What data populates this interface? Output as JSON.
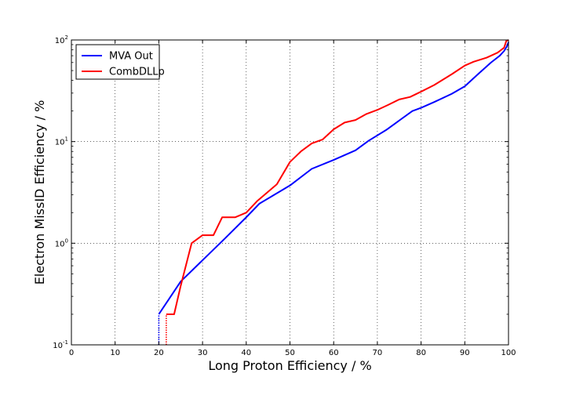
{
  "chart_data": {
    "type": "line",
    "title": "",
    "xlabel": "Long Proton Efficiency / %",
    "ylabel": "Electron MissID Efficiency / %",
    "xlim": [
      0,
      100
    ],
    "ylim": [
      0.1,
      100
    ],
    "yscale": "log",
    "grid": true,
    "legend_position": "top-left",
    "x_ticks": [
      0,
      10,
      20,
      30,
      40,
      50,
      60,
      70,
      80,
      90,
      100
    ],
    "x_tick_labels": [
      "0",
      "10",
      "20",
      "30",
      "40",
      "50",
      "60",
      "70",
      "80",
      "90",
      "100"
    ],
    "y_ticks": [
      0.1,
      1,
      10,
      100
    ],
    "y_tick_labels": [
      {
        "base": "10",
        "exp": "-1"
      },
      {
        "base": "10",
        "exp": "0"
      },
      {
        "base": "10",
        "exp": "1"
      },
      {
        "base": "10",
        "exp": "2"
      }
    ],
    "series": [
      {
        "name": "MVA Out",
        "color": "#0000ff",
        "points": [
          [
            20.0,
            0.1
          ],
          [
            20.0,
            0.2
          ],
          [
            25.0,
            0.42
          ],
          [
            30.0,
            0.68
          ],
          [
            35.0,
            1.1
          ],
          [
            40.0,
            1.8
          ],
          [
            43.0,
            2.45
          ],
          [
            50.0,
            3.7
          ],
          [
            55.0,
            5.4
          ],
          [
            60.0,
            6.6
          ],
          [
            65.0,
            8.2
          ],
          [
            68.0,
            10.2
          ],
          [
            72.0,
            13.0
          ],
          [
            78.0,
            20.0
          ],
          [
            80.0,
            21.5
          ],
          [
            83.0,
            24.5
          ],
          [
            87.0,
            29.5
          ],
          [
            90.0,
            35.0
          ],
          [
            93.0,
            46.0
          ],
          [
            96.0,
            60.0
          ],
          [
            98.0,
            70.0
          ],
          [
            99.0,
            78.0
          ],
          [
            99.6,
            86.0
          ],
          [
            100.0,
            95.0
          ]
        ]
      },
      {
        "name": "CombDLLp",
        "color": "#ff0000",
        "points": [
          [
            21.7,
            0.1
          ],
          [
            21.7,
            0.2
          ],
          [
            23.5,
            0.2
          ],
          [
            25.0,
            0.38
          ],
          [
            27.5,
            1.0
          ],
          [
            30.0,
            1.2
          ],
          [
            32.5,
            1.2
          ],
          [
            34.5,
            1.8
          ],
          [
            37.5,
            1.8
          ],
          [
            40.0,
            2.0
          ],
          [
            42.5,
            2.6
          ],
          [
            47.0,
            3.8
          ],
          [
            50.0,
            6.3
          ],
          [
            52.5,
            8.0
          ],
          [
            55.0,
            9.6
          ],
          [
            57.5,
            10.5
          ],
          [
            60.0,
            13.2
          ],
          [
            62.5,
            15.4
          ],
          [
            65.0,
            16.3
          ],
          [
            67.5,
            18.7
          ],
          [
            70.0,
            20.5
          ],
          [
            72.5,
            23.0
          ],
          [
            75.0,
            26.0
          ],
          [
            77.5,
            27.5
          ],
          [
            80.0,
            31.0
          ],
          [
            83.0,
            36.0
          ],
          [
            87.0,
            46.0
          ],
          [
            90.0,
            56.0
          ],
          [
            92.0,
            61.0
          ],
          [
            95.0,
            67.0
          ],
          [
            97.5,
            75.0
          ],
          [
            99.0,
            84.0
          ],
          [
            99.5,
            98.0
          ],
          [
            100.0,
            100.0
          ]
        ]
      }
    ]
  }
}
